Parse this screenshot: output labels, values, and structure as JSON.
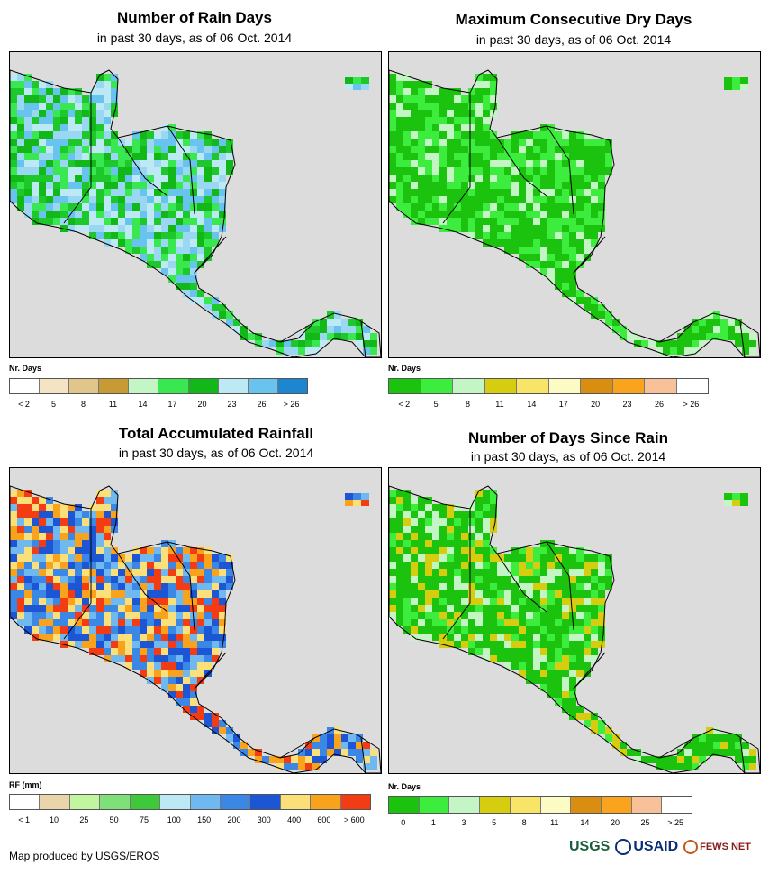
{
  "panels": [
    {
      "id": "rain_days",
      "title": "Number of Rain Days",
      "subtitle": "in past 30 days, as of 06 Oct. 2014",
      "legend_title": "Nr. Days",
      "legend_colors": [
        "#ffffff",
        "#f5e4c3",
        "#e1c68b",
        "#c89a34",
        "#c4f5c4",
        "#39e851",
        "#12b818",
        "#bde9f5",
        "#69c3ef",
        "#1d86d1"
      ],
      "legend_labels": [
        "< 2",
        "5",
        "8",
        "11",
        "14",
        "17",
        "20",
        "23",
        "26",
        "> 26"
      ],
      "palette": [
        "#12b818",
        "#39e851",
        "#1ec82a",
        "#bde9f5",
        "#69c3ef",
        "#9ad7f2"
      ],
      "seed": 11
    },
    {
      "id": "max_dry_days",
      "title": "Maximum Consecutive Dry Days",
      "subtitle": "in past 30 days, as of 06 Oct. 2014",
      "legend_title": "Nr. Days",
      "legend_colors": [
        "#1bc20e",
        "#3ced3d",
        "#c4f5c4",
        "#d6cc10",
        "#f8e466",
        "#fcfbc4",
        "#da8e11",
        "#f9a41c",
        "#f9c197",
        "#ffffff"
      ],
      "legend_labels": [
        "< 2",
        "5",
        "8",
        "11",
        "14",
        "17",
        "20",
        "23",
        "26",
        "> 26"
      ],
      "palette": [
        "#1bc20e",
        "#3ced3d",
        "#1bc20e",
        "#1bc20e",
        "#3ced3d",
        "#c4f5c4"
      ],
      "seed": 23
    },
    {
      "id": "total_rainfall",
      "title": "Total Accumulated Rainfall",
      "subtitle": "in past 30 days, as of 06 Oct. 2014",
      "legend_title": "RF (mm)",
      "legend_colors": [
        "#ffffff",
        "#ead4aa",
        "#c1f5a0",
        "#7fe07a",
        "#3ec93b",
        "#bde9f5",
        "#6fb8f0",
        "#3a87e6",
        "#1c56d4",
        "#fbe07a",
        "#f9a31c",
        "#f33c14"
      ],
      "legend_labels": [
        "< 1",
        "10",
        "25",
        "50",
        "75",
        "100",
        "150",
        "200",
        "300",
        "400",
        "600",
        "> 600"
      ],
      "palette": [
        "#1c56d4",
        "#3a87e6",
        "#6fb8f0",
        "#f9a31c",
        "#fbe07a",
        "#f33c14"
      ],
      "seed": 37
    },
    {
      "id": "days_since_rain",
      "title": "Number of Days Since Rain",
      "subtitle": "in past 30 days, as of 06 Oct. 2014",
      "legend_title": "Nr. Days",
      "legend_colors": [
        "#1bc20e",
        "#3ced3d",
        "#c4f5c4",
        "#d6cc10",
        "#f8e466",
        "#fcfbc4",
        "#da8e11",
        "#f9a41c",
        "#f9c197",
        "#ffffff"
      ],
      "legend_labels": [
        "0",
        "1",
        "3",
        "5",
        "8",
        "11",
        "14",
        "20",
        "25",
        "> 25"
      ],
      "palette": [
        "#1bc20e",
        "#3ced3d",
        "#1bc20e",
        "#c4f5c4",
        "#d6cc10",
        "#1bc20e"
      ],
      "seed": 51
    }
  ],
  "footer": {
    "credit": "Map produced by USGS/EROS",
    "logos": [
      "USGS",
      "USAID",
      "FEWS NET"
    ]
  },
  "colors": {
    "ocean": "#dcdcdc",
    "border": "#000000"
  }
}
